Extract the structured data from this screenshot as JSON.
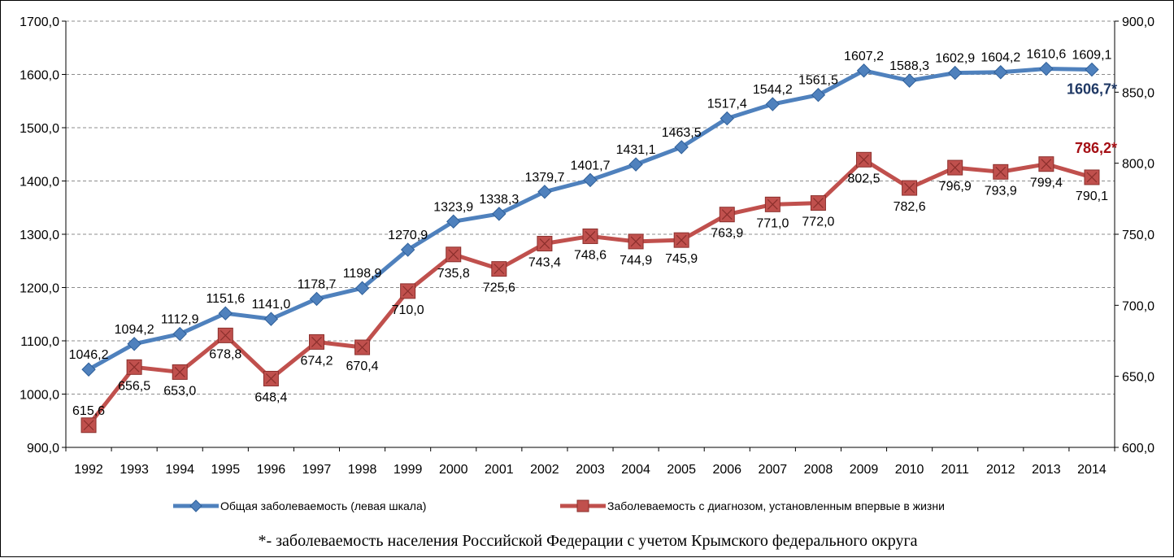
{
  "chart_data": {
    "type": "line",
    "categories": [
      "1992",
      "1993",
      "1994",
      "1995",
      "1996",
      "1997",
      "1998",
      "1999",
      "2000",
      "2001",
      "2002",
      "2003",
      "2004",
      "2005",
      "2006",
      "2007",
      "2008",
      "2009",
      "2010",
      "2011",
      "2012",
      "2013",
      "2014"
    ],
    "y_left": {
      "min": 900,
      "max": 1700,
      "step": 100,
      "tick_labels": [
        "900,0",
        "1000,0",
        "1100,0",
        "1200,0",
        "1300,0",
        "1400,0",
        "1500,0",
        "1600,0",
        "1700,0"
      ]
    },
    "y_right": {
      "min": 600,
      "max": 900,
      "step": 50,
      "tick_labels": [
        "600,0",
        "650,0",
        "700,0",
        "750,0",
        "800,0",
        "850,0",
        "900,0"
      ]
    },
    "grid": "horizontal dashed",
    "legend_position": "bottom",
    "series": [
      {
        "name": "Общая заболеваемость  (левая шкала)",
        "axis": "left",
        "color": "#4f81bd",
        "marker": "diamond",
        "values": [
          1046.2,
          1094.2,
          1112.9,
          1151.6,
          1141.0,
          1178.7,
          1198.9,
          1270.9,
          1323.9,
          1338.3,
          1379.7,
          1401.7,
          1431.1,
          1463.5,
          1517.4,
          1544.2,
          1561.5,
          1607.2,
          1588.3,
          1602.9,
          1604.2,
          1610.6,
          1609.1
        ],
        "labels": [
          "1046,2",
          "1094,2",
          "1112,9",
          "1151,6",
          "1141,0",
          "1178,7",
          "1198,9",
          "1270,9",
          "1323,9",
          "1338,3",
          "1379,7",
          "1401,7",
          "1431,1",
          "1463,5",
          "1517,4",
          "1544,2",
          "1561,5",
          "1607,2",
          "1588,3",
          "1602,9",
          "1604,2",
          "1610,6",
          "1609,1"
        ]
      },
      {
        "name": "Заболеваемость с диагнозом, установленным впервые в жизни",
        "axis": "right",
        "color": "#c0504d",
        "marker": "square",
        "values": [
          615.6,
          656.5,
          653.0,
          678.8,
          648.4,
          674.2,
          670.4,
          710.0,
          735.8,
          725.6,
          743.4,
          748.6,
          744.9,
          745.9,
          763.9,
          771.0,
          772.0,
          802.5,
          782.6,
          796.9,
          793.9,
          799.4,
          790.1
        ],
        "labels": [
          "615,6",
          "656,5",
          "653,0",
          "678,8",
          "648,4",
          "674,2",
          "670,4",
          "710,0",
          "735,8",
          "725,6",
          "743,4",
          "748,6",
          "744,9",
          "745,9",
          "763,9",
          "771,0",
          "772,0",
          "802,5",
          "782,6",
          "796,9",
          "793,9",
          "799,4",
          "790,1"
        ]
      }
    ],
    "annotations": [
      {
        "text": "1606,7*",
        "series": 0,
        "color": "#1f3864"
      },
      {
        "text": "786,2*",
        "series": 1,
        "color": "#a50f15"
      }
    ],
    "footnote": "*- заболеваемость населения   Российской Федерации с учетом  Крымского федерального округа"
  }
}
